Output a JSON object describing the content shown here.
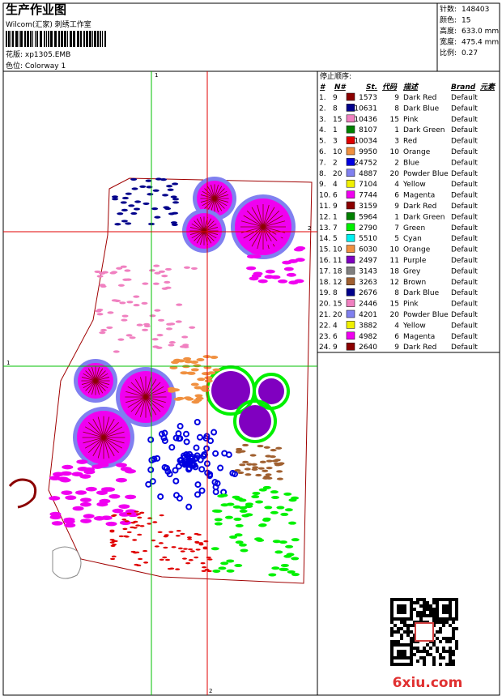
{
  "header": {
    "title": "生产作业图",
    "subtitle": "Wilcom(汇家) 刺绣工作室",
    "design": "花版: xp1305.EMB",
    "colorway": "色位: Colorway 1"
  },
  "stats": [
    {
      "label": "针数:",
      "value": "148403"
    },
    {
      "label": "颜色:",
      "value": "15"
    },
    {
      "label": "高度:",
      "value": "633.0 mm"
    },
    {
      "label": "宽度:",
      "value": "475.4 mm"
    },
    {
      "label": "比例:",
      "value": "0.27"
    }
  ],
  "crosshair_labels": {
    "top": "1",
    "left": "1",
    "right": "2",
    "bottom": "2"
  },
  "table": {
    "title": "停止顺序:",
    "headers": [
      "#",
      "N#",
      "St.",
      "代码",
      "描述",
      "Brand",
      "元素"
    ],
    "rows": [
      [
        "1.",
        "9",
        "#8b0000",
        "1573",
        "9",
        "Dark Red",
        "Default"
      ],
      [
        "2.",
        "8",
        "#00008b",
        "10631",
        "8",
        "Dark Blue",
        "Default"
      ],
      [
        "3.",
        "15",
        "#f080c0",
        "10436",
        "15",
        "Pink",
        "Default"
      ],
      [
        "4.",
        "1",
        "#008000",
        "8107",
        "1",
        "Dark Green",
        "Default"
      ],
      [
        "5.",
        "3",
        "#e00000",
        "10034",
        "3",
        "Red",
        "Default"
      ],
      [
        "6.",
        "10",
        "#f09040",
        "9950",
        "10",
        "Orange",
        "Default"
      ],
      [
        "7.",
        "2",
        "#0000e0",
        "24752",
        "2",
        "Blue",
        "Default"
      ],
      [
        "8.",
        "20",
        "#8080f0",
        "4887",
        "20",
        "Powder Blue",
        "Default"
      ],
      [
        "9.",
        "4",
        "#f0f000",
        "7104",
        "4",
        "Yellow",
        "Default"
      ],
      [
        "10.",
        "6",
        "#f000f0",
        "7744",
        "6",
        "Magenta",
        "Default"
      ],
      [
        "11.",
        "9",
        "#8b0000",
        "3159",
        "9",
        "Dark Red",
        "Default"
      ],
      [
        "12.",
        "1",
        "#008000",
        "5964",
        "1",
        "Dark Green",
        "Default"
      ],
      [
        "13.",
        "7",
        "#00f000",
        "2790",
        "7",
        "Green",
        "Default"
      ],
      [
        "14.",
        "5",
        "#00f0f0",
        "5510",
        "5",
        "Cyan",
        "Default"
      ],
      [
        "15.",
        "10",
        "#f09040",
        "6030",
        "10",
        "Orange",
        "Default"
      ],
      [
        "16.",
        "11",
        "#8000c0",
        "2497",
        "11",
        "Purple",
        "Default"
      ],
      [
        "17.",
        "18",
        "#808080",
        "3143",
        "18",
        "Grey",
        "Default"
      ],
      [
        "18.",
        "12",
        "#a06030",
        "3263",
        "12",
        "Brown",
        "Default"
      ],
      [
        "19.",
        "8",
        "#00008b",
        "2676",
        "8",
        "Dark Blue",
        "Default"
      ],
      [
        "20.",
        "15",
        "#f080c0",
        "2446",
        "15",
        "Pink",
        "Default"
      ],
      [
        "21.",
        "20",
        "#8080f0",
        "4201",
        "20",
        "Powder Blue",
        "Default"
      ],
      [
        "22.",
        "4",
        "#f0f000",
        "3882",
        "4",
        "Yellow",
        "Default"
      ],
      [
        "23.",
        "6",
        "#f000f0",
        "4982",
        "6",
        "Magenta",
        "Default"
      ],
      [
        "24.",
        "9",
        "#8b0000",
        "2640",
        "9",
        "Dark Red",
        "Default"
      ]
    ]
  },
  "watermark": "6xiu.com"
}
